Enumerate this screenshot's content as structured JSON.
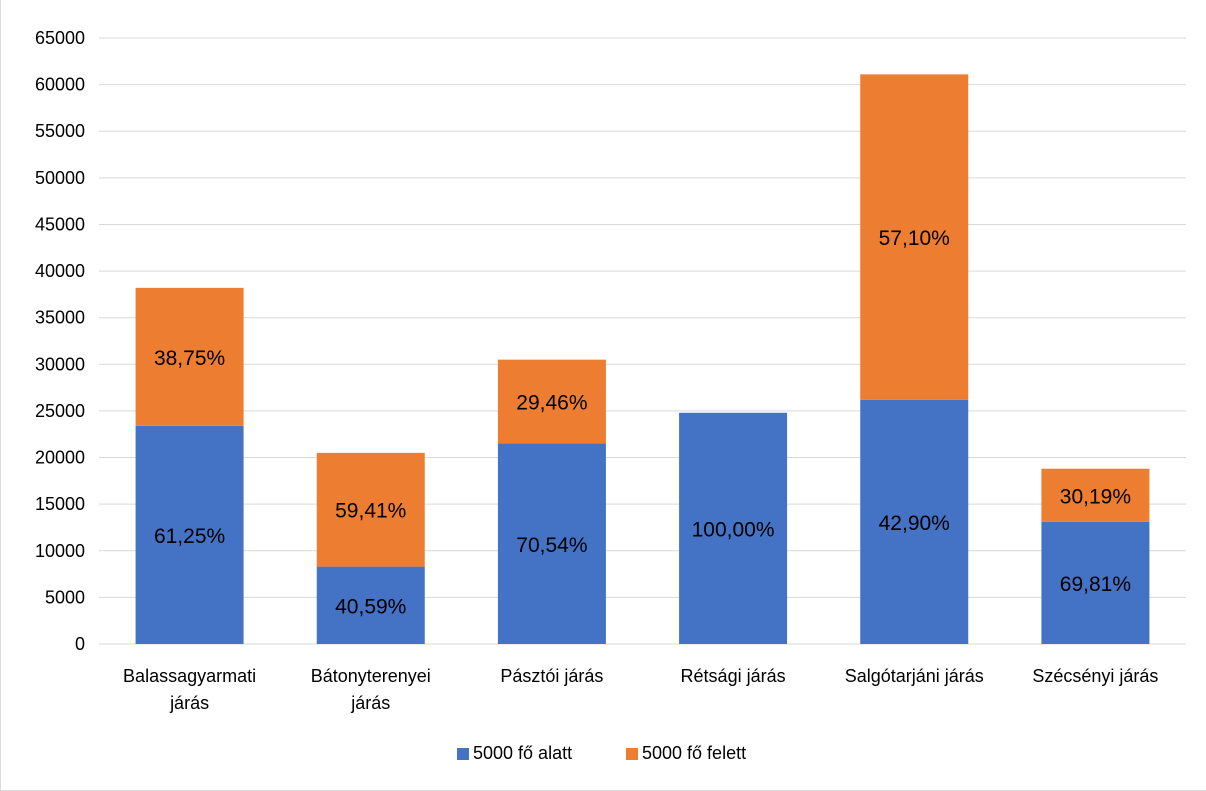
{
  "chart_data": {
    "type": "bar",
    "stacked": true,
    "categories": [
      [
        "Balassagyarmati",
        "járás"
      ],
      [
        "Bátonyterenyei",
        "járás"
      ],
      [
        "Pásztói járás"
      ],
      [
        "Rétsági járás"
      ],
      [
        "Salgótarjáni járás"
      ],
      [
        "Szécsényi járás"
      ]
    ],
    "series": [
      {
        "name": "5000 fő alatt",
        "color": "#4472C4",
        "values": [
          23400,
          8300,
          21500,
          24800,
          26200,
          13100
        ],
        "labels": [
          "61,25%",
          "40,59%",
          "70,54%",
          "100,00%",
          "42,90%",
          "69,81%"
        ]
      },
      {
        "name": "5000 fő felett",
        "color": "#ED7D31",
        "values": [
          14800,
          12200,
          9000,
          0,
          34900,
          5700
        ],
        "labels": [
          "38,75%",
          "59,41%",
          "29,46%",
          "",
          "57,10%",
          "30,19%"
        ]
      }
    ],
    "ylim": [
      0,
      65000
    ],
    "yticks": [
      0,
      5000,
      10000,
      15000,
      20000,
      25000,
      30000,
      35000,
      40000,
      45000,
      50000,
      55000,
      60000,
      65000
    ],
    "grid": true,
    "legend_position": "bottom",
    "title": "",
    "xlabel": "",
    "ylabel": ""
  }
}
